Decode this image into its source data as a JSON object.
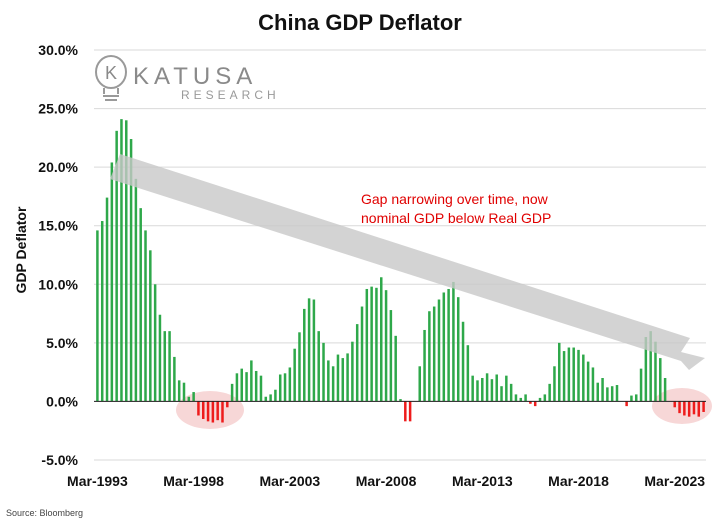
{
  "chart_data": {
    "type": "bar",
    "title": "China GDP Deflator",
    "ylabel": "GDP Deflator",
    "xlabel": "",
    "ylim": [
      -5,
      30
    ],
    "yticks": [
      "-5.0%",
      "0.0%",
      "5.0%",
      "10.0%",
      "15.0%",
      "20.0%",
      "25.0%",
      "30.0%"
    ],
    "xticks": [
      "Mar-1993",
      "Mar-1998",
      "Mar-2003",
      "Mar-2008",
      "Mar-2013",
      "Mar-2018",
      "Mar-2023"
    ],
    "grid": true,
    "positive_color": "#2ea84a",
    "negative_color": "#ee1c1c",
    "values": [
      14.6,
      15.4,
      17.4,
      20.4,
      23.1,
      24.1,
      24.0,
      22.4,
      19.0,
      16.5,
      14.6,
      12.9,
      10.0,
      7.4,
      6.0,
      6.0,
      3.8,
      1.8,
      1.6,
      0.4,
      0.8,
      -1.2,
      -1.5,
      -1.7,
      -1.8,
      -1.6,
      -1.8,
      -0.5,
      1.5,
      2.4,
      2.8,
      2.5,
      3.5,
      2.6,
      2.2,
      0.4,
      0.6,
      1.0,
      2.3,
      2.4,
      2.9,
      4.5,
      5.9,
      7.9,
      8.8,
      8.7,
      6.0,
      5.0,
      3.5,
      3.0,
      4.0,
      3.7,
      4.1,
      5.1,
      6.6,
      8.1,
      9.6,
      9.8,
      9.7,
      10.6,
      9.5,
      7.8,
      5.6,
      0.2,
      -1.7,
      -1.7,
      0,
      3.0,
      6.1,
      7.7,
      8.1,
      8.7,
      9.3,
      9.6,
      10.2,
      8.9,
      6.8,
      4.8,
      2.2,
      1.8,
      2.0,
      2.4,
      1.9,
      2.3,
      1.3,
      2.2,
      1.5,
      0.6,
      0.3,
      0.6,
      -0.2,
      -0.4,
      0.3,
      0.6,
      1.5,
      3.0,
      5.0,
      4.3,
      4.6,
      4.6,
      4.4,
      4.0,
      3.4,
      2.9,
      1.6,
      2.0,
      1.2,
      1.3,
      1.4,
      0,
      -0.4,
      0.5,
      0.6,
      2.8,
      5.5,
      6.0,
      5.1,
      3.7,
      2.0,
      0,
      -0.5,
      -1.0,
      -1.2,
      -1.3,
      -1.1,
      -1.3,
      -0.9
    ],
    "annotations": [
      "Gap narrowing over time, now",
      "nominal GDP below Real GDP"
    ],
    "highlighted_regions": [
      "negative values around Mar-1998",
      "negative values around Mar-2023"
    ],
    "trend_arrow": "downward, from early-1990s peak to Mar-2023"
  },
  "logo": {
    "brand": "KATUSA",
    "sub": "RESEARCH",
    "glyph": "K"
  },
  "source": "Source: Bloomberg"
}
